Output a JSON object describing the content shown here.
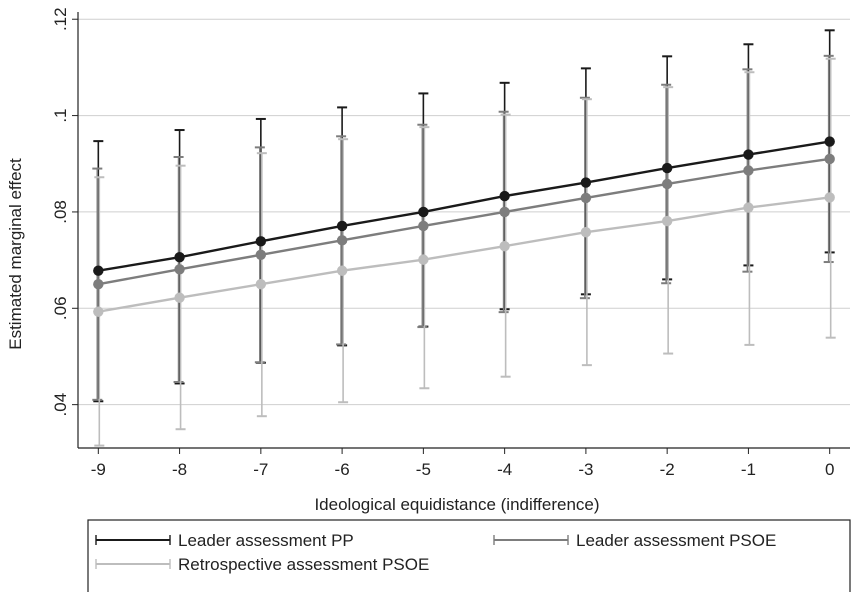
{
  "chart_data": {
    "type": "line",
    "title": "",
    "xlabel": "Ideological equidistance (indifference)",
    "ylabel": "Estimated marginal effect",
    "x": [
      -9,
      -8,
      -7,
      -6,
      -5,
      -4,
      -3,
      -2,
      -1,
      0
    ],
    "x_tick_labels": [
      "-9",
      "-8",
      "-7",
      "-6",
      "-5",
      "-4",
      "-3",
      "-2",
      "-1",
      "0"
    ],
    "y_ticks": [
      0.04,
      0.06,
      0.08,
      0.1,
      0.12
    ],
    "y_tick_labels": [
      ".04",
      ".06",
      ".08",
      ".1",
      ".12"
    ],
    "xlim": [
      -9.25,
      0.25
    ],
    "ylim": [
      0.031,
      0.1215
    ],
    "grid": true,
    "legend_position": "bottom",
    "series": [
      {
        "name": "Leader assessment PP",
        "color": "#1a1a1a",
        "values": [
          0.0678,
          0.0706,
          0.0739,
          0.0771,
          0.08,
          0.0833,
          0.0861,
          0.0891,
          0.0919,
          0.0946
        ],
        "upper": [
          0.0947,
          0.097,
          0.0993,
          0.1017,
          0.1046,
          0.1068,
          0.1098,
          0.1123,
          0.1148,
          0.1177
        ],
        "lower": [
          0.0407,
          0.0444,
          0.0487,
          0.0523,
          0.0562,
          0.0598,
          0.0629,
          0.066,
          0.0689,
          0.0716
        ]
      },
      {
        "name": "Leader assessment PSOE",
        "color": "#7d7d7d",
        "values": [
          0.065,
          0.0681,
          0.0711,
          0.0741,
          0.0771,
          0.08,
          0.0829,
          0.0858,
          0.0886,
          0.091
        ],
        "upper": [
          0.089,
          0.0914,
          0.0934,
          0.0957,
          0.0981,
          0.1008,
          0.1037,
          0.1064,
          0.1096,
          0.1124
        ],
        "lower": [
          0.041,
          0.0447,
          0.0488,
          0.0525,
          0.0561,
          0.0592,
          0.0621,
          0.0652,
          0.0676,
          0.0696
        ]
      },
      {
        "name": "Retrospective assessment PSOE",
        "color": "#bdbdbd",
        "values": [
          0.0593,
          0.0622,
          0.065,
          0.0678,
          0.0701,
          0.0729,
          0.0758,
          0.0781,
          0.0809,
          0.083
        ],
        "upper": [
          0.0872,
          0.0896,
          0.0922,
          0.0951,
          0.0976,
          0.1002,
          0.1034,
          0.1059,
          0.109,
          0.1118
        ],
        "lower": [
          0.0315,
          0.0349,
          0.0376,
          0.0405,
          0.0434,
          0.0458,
          0.0482,
          0.0506,
          0.0524,
          0.0539
        ]
      }
    ]
  }
}
